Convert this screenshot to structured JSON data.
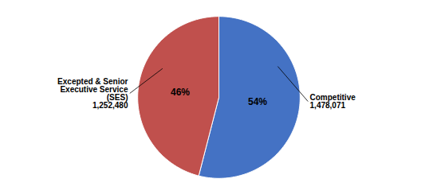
{
  "chart_data": {
    "type": "pie",
    "categories": [
      "Competitive",
      "Excepted & Senior\nExecutive Service\n(SES)"
    ],
    "values": [
      54,
      46
    ],
    "value_labels": [
      "54%",
      "46%"
    ],
    "counts": [
      1478071,
      1252480
    ],
    "count_labels": [
      "1,478,071",
      "1,252,480"
    ],
    "colors": [
      "#4472C4",
      "#C0504D"
    ],
    "data_labels": true
  }
}
